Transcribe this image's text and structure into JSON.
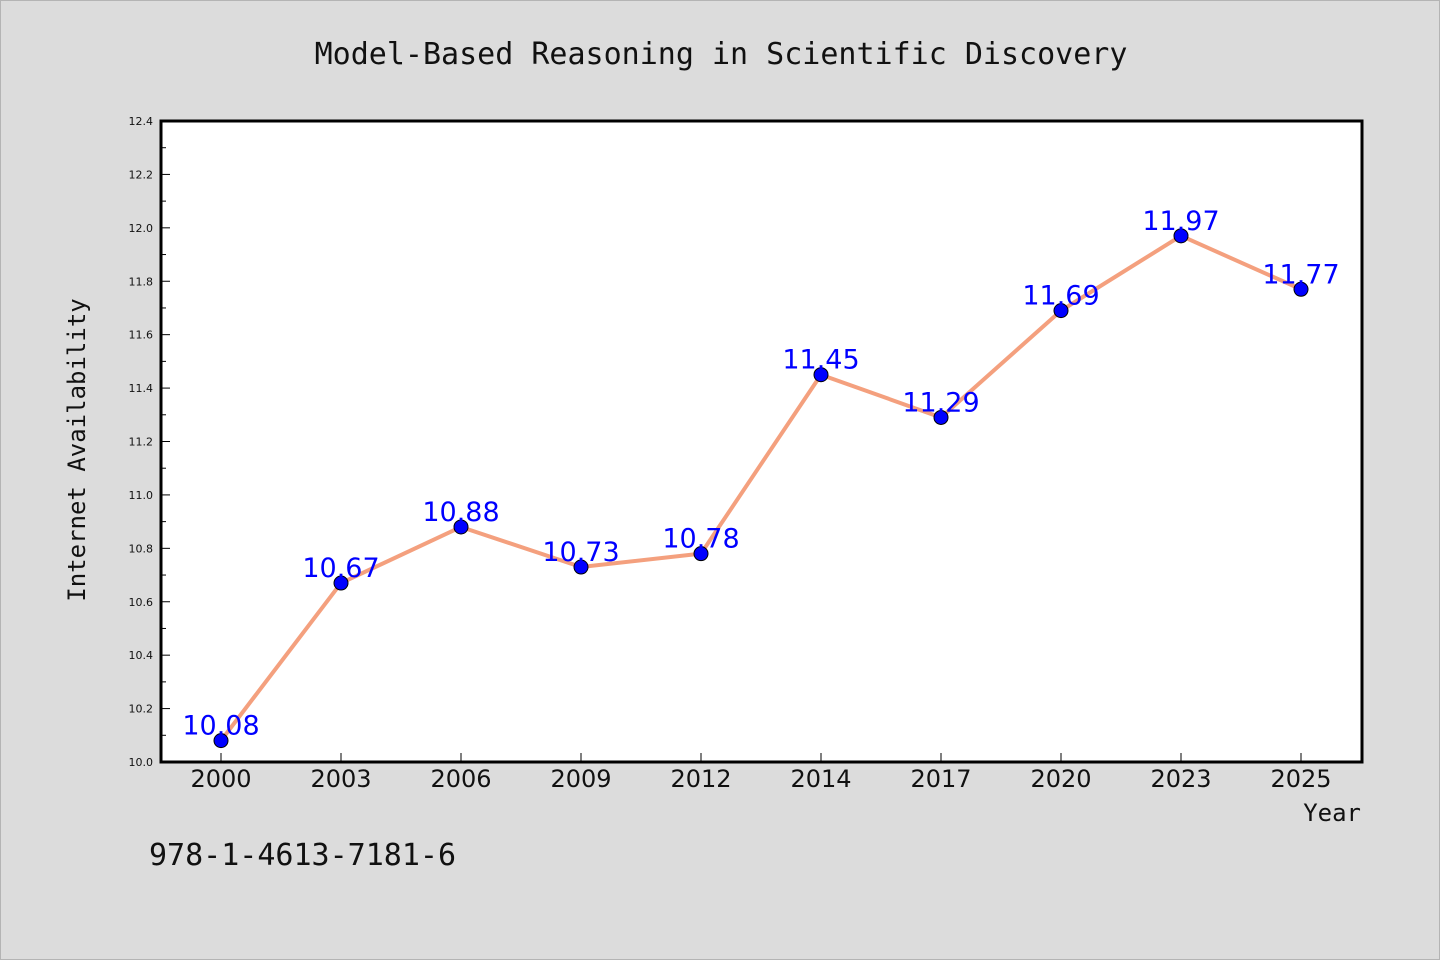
{
  "chart_data": {
    "type": "line",
    "title": "Model-Based Reasoning in Scientific Discovery",
    "xlabel": "Year",
    "ylabel": "Internet Availability",
    "categories": [
      "2000",
      "2003",
      "2006",
      "2009",
      "2012",
      "2014",
      "2017",
      "2020",
      "2023",
      "2025"
    ],
    "series": [
      {
        "values": [
          10.08,
          10.67,
          10.88,
          10.73,
          10.78,
          11.45,
          11.29,
          11.69,
          11.97,
          11.77
        ],
        "labels": [
          "10.08",
          "10.67",
          "10.88",
          "10.73",
          "10.78",
          "11.45",
          "11.29",
          "11.69",
          "11.97",
          "11.77"
        ],
        "line_color": "#f4a07e",
        "marker_color": "#0000ff"
      }
    ],
    "ylim": [
      10.0,
      12.4
    ],
    "y_ticks": [
      "10.0",
      "10.2",
      "10.4",
      "10.6",
      "10.8",
      "11.0",
      "11.2",
      "11.4",
      "11.6",
      "11.8",
      "12.0",
      "12.2",
      "12.4"
    ],
    "grid": false,
    "legend": "none"
  },
  "footer": {
    "isbn": "978-1-4613-7181-6"
  },
  "colors": {
    "background": "#dcdcdc",
    "plot_background": "#ffffff",
    "label_color": "#0000ff"
  }
}
